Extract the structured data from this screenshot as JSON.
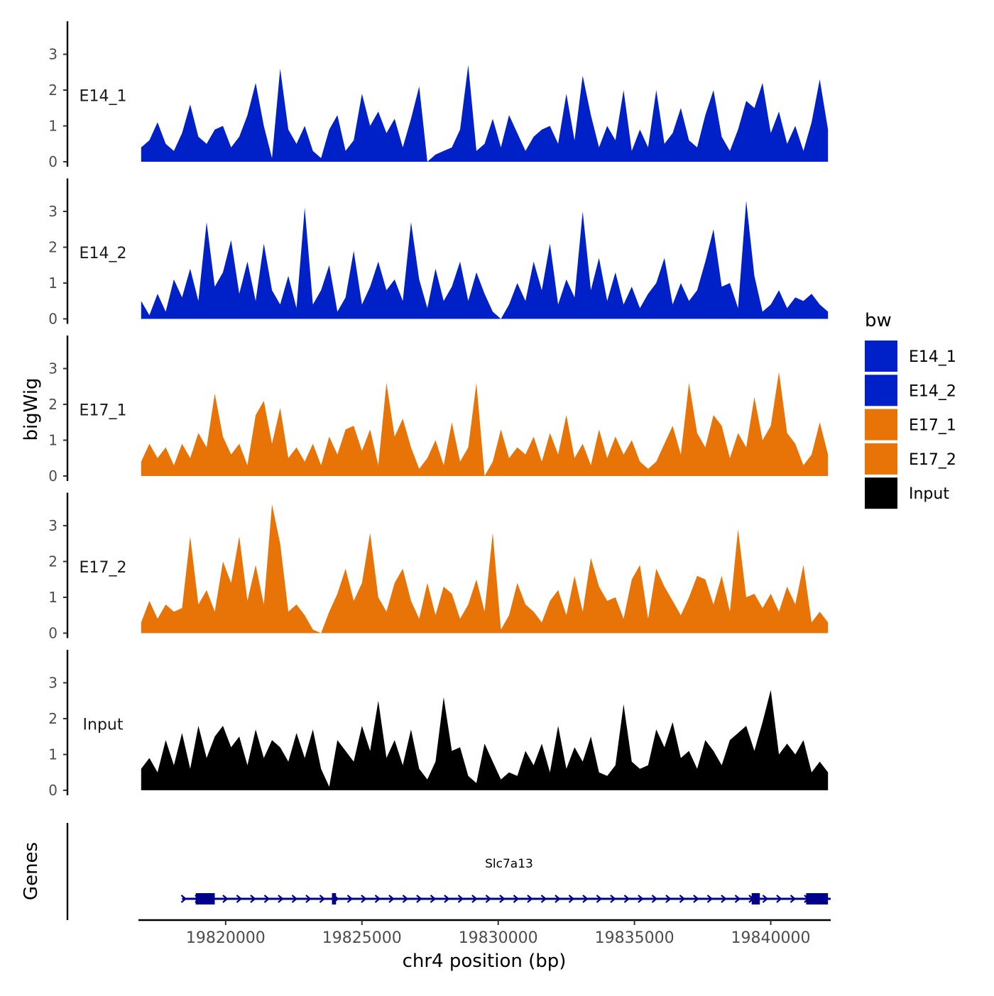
{
  "chart_data": {
    "type": "area",
    "ylabel": "bigWig",
    "xlabel": "chr4 position (bp)",
    "x_range": [
      19816800,
      19842200
    ],
    "x_ticks": [
      19820000,
      19825000,
      19830000,
      19835000,
      19840000
    ],
    "x_tick_labels": [
      "19820000",
      "19825000",
      "19830000",
      "19835000",
      "19840000"
    ],
    "y_range": [
      0,
      3.9
    ],
    "y_ticks": [
      0,
      1,
      2,
      3
    ],
    "y_tick_labels": [
      "0",
      "1",
      "2",
      "3"
    ],
    "tracks": [
      {
        "name": "E14_1",
        "color": "#0020C8",
        "x": [
          19816900,
          19817200,
          19817500,
          19817800,
          19818100,
          19818400,
          19818700,
          19819000,
          19819300,
          19819600,
          19819900,
          19820200,
          19820500,
          19820800,
          19821100,
          19821400,
          19821700,
          19822000,
          19822300,
          19822600,
          19822900,
          19823200,
          19823500,
          19823800,
          19824100,
          19824400,
          19824700,
          19825000,
          19825300,
          19825600,
          19825900,
          19826200,
          19826500,
          19826800,
          19827100,
          19827400,
          19827700,
          19828000,
          19828300,
          19828600,
          19828900,
          19829200,
          19829500,
          19829800,
          19830100,
          19830400,
          19830700,
          19831000,
          19831300,
          19831600,
          19831900,
          19832200,
          19832500,
          19832800,
          19833100,
          19833400,
          19833700,
          19834000,
          19834300,
          19834600,
          19834900,
          19835200,
          19835500,
          19835800,
          19836100,
          19836400,
          19836700,
          19837000,
          19837300,
          19837600,
          19837900,
          19838200,
          19838500,
          19838800,
          19839100,
          19839400,
          19839700,
          19840000,
          19840300,
          19840600,
          19840900,
          19841200,
          19841500,
          19841800,
          19842100
        ],
        "values": [
          0.4,
          0.6,
          1.1,
          0.5,
          0.3,
          0.8,
          1.6,
          0.7,
          0.5,
          0.9,
          1.0,
          0.4,
          0.7,
          1.3,
          2.2,
          1.0,
          0.1,
          2.6,
          0.9,
          0.5,
          1.0,
          0.3,
          0.1,
          0.9,
          1.3,
          0.3,
          0.6,
          1.9,
          1.0,
          1.4,
          0.8,
          1.2,
          0.4,
          1.2,
          2.1,
          0.0,
          0.2,
          0.3,
          0.4,
          0.9,
          2.7,
          0.3,
          0.5,
          1.2,
          0.4,
          1.3,
          0.8,
          0.3,
          0.7,
          0.9,
          1.0,
          0.5,
          1.9,
          0.6,
          2.4,
          1.3,
          0.4,
          1.0,
          0.6,
          2.0,
          0.3,
          0.9,
          0.4,
          2.0,
          0.5,
          0.8,
          1.5,
          0.6,
          0.4,
          1.3,
          2.0,
          0.7,
          0.3,
          0.9,
          1.7,
          1.5,
          2.2,
          0.8,
          1.4,
          0.5,
          1.0,
          0.3,
          1.1,
          2.3,
          0.9
        ]
      },
      {
        "name": "E14_2",
        "color": "#0020C8",
        "x": [
          19816900,
          19817200,
          19817500,
          19817800,
          19818100,
          19818400,
          19818700,
          19819000,
          19819300,
          19819600,
          19819900,
          19820200,
          19820500,
          19820800,
          19821100,
          19821400,
          19821700,
          19822000,
          19822300,
          19822600,
          19822900,
          19823200,
          19823500,
          19823800,
          19824100,
          19824400,
          19824700,
          19825000,
          19825300,
          19825600,
          19825900,
          19826200,
          19826500,
          19826800,
          19827100,
          19827400,
          19827700,
          19828000,
          19828300,
          19828600,
          19828900,
          19829200,
          19829500,
          19829800,
          19830100,
          19830400,
          19830700,
          19831000,
          19831300,
          19831600,
          19831900,
          19832200,
          19832500,
          19832800,
          19833100,
          19833400,
          19833700,
          19834000,
          19834300,
          19834600,
          19834900,
          19835200,
          19835500,
          19835800,
          19836100,
          19836400,
          19836700,
          19837000,
          19837300,
          19837600,
          19837900,
          19838200,
          19838500,
          19838800,
          19839100,
          19839400,
          19839700,
          19840000,
          19840300,
          19840600,
          19840900,
          19841200,
          19841500,
          19841800,
          19842100
        ],
        "values": [
          0.5,
          0.1,
          0.7,
          0.2,
          1.1,
          0.6,
          1.4,
          0.5,
          2.7,
          0.9,
          1.3,
          2.2,
          0.7,
          1.6,
          0.5,
          2.1,
          0.8,
          0.4,
          1.2,
          0.3,
          3.1,
          0.4,
          0.8,
          1.5,
          0.2,
          0.6,
          1.9,
          0.4,
          0.9,
          1.6,
          0.8,
          1.1,
          0.5,
          2.7,
          1.1,
          0.3,
          1.4,
          0.5,
          0.9,
          1.6,
          0.5,
          1.3,
          0.7,
          0.2,
          0.0,
          0.4,
          1.0,
          0.5,
          1.6,
          0.8,
          2.1,
          0.4,
          1.1,
          0.6,
          3.0,
          0.8,
          1.7,
          0.5,
          1.3,
          0.4,
          0.9,
          0.3,
          0.7,
          1.0,
          1.7,
          0.4,
          1.0,
          0.5,
          0.8,
          1.6,
          2.5,
          0.9,
          1.0,
          0.3,
          3.3,
          1.2,
          0.2,
          0.4,
          0.8,
          0.3,
          0.6,
          0.5,
          0.7,
          0.4,
          0.2
        ]
      },
      {
        "name": "E17_1",
        "color": "#E87306",
        "x": [
          19816900,
          19817200,
          19817500,
          19817800,
          19818100,
          19818400,
          19818700,
          19819000,
          19819300,
          19819600,
          19819900,
          19820200,
          19820500,
          19820800,
          19821100,
          19821400,
          19821700,
          19822000,
          19822300,
          19822600,
          19822900,
          19823200,
          19823500,
          19823800,
          19824100,
          19824400,
          19824700,
          19825000,
          19825300,
          19825600,
          19825900,
          19826200,
          19826500,
          19826800,
          19827100,
          19827400,
          19827700,
          19828000,
          19828300,
          19828600,
          19828900,
          19829200,
          19829500,
          19829800,
          19830100,
          19830400,
          19830700,
          19831000,
          19831300,
          19831600,
          19831900,
          19832200,
          19832500,
          19832800,
          19833100,
          19833400,
          19833700,
          19834000,
          19834300,
          19834600,
          19834900,
          19835200,
          19835500,
          19835800,
          19836100,
          19836400,
          19836700,
          19837000,
          19837300,
          19837600,
          19837900,
          19838200,
          19838500,
          19838800,
          19839100,
          19839400,
          19839700,
          19840000,
          19840300,
          19840600,
          19840900,
          19841200,
          19841500,
          19841800,
          19842100
        ],
        "values": [
          0.4,
          0.9,
          0.5,
          0.8,
          0.3,
          0.9,
          0.5,
          1.2,
          0.8,
          2.3,
          1.1,
          0.6,
          0.9,
          0.3,
          1.7,
          2.1,
          0.9,
          1.9,
          0.5,
          0.8,
          0.4,
          0.9,
          0.3,
          1.1,
          0.6,
          1.3,
          1.4,
          0.7,
          1.3,
          0.3,
          2.6,
          1.1,
          1.6,
          0.8,
          0.2,
          0.5,
          1.0,
          0.3,
          1.5,
          0.4,
          0.8,
          2.6,
          0.0,
          0.4,
          1.3,
          0.5,
          0.8,
          0.6,
          1.1,
          0.4,
          1.2,
          0.6,
          1.7,
          0.5,
          0.9,
          0.3,
          1.3,
          0.5,
          1.1,
          0.6,
          1.0,
          0.4,
          0.2,
          0.4,
          0.9,
          1.4,
          0.6,
          2.6,
          1.2,
          0.8,
          1.7,
          1.4,
          0.5,
          1.2,
          0.8,
          2.2,
          1.0,
          1.4,
          2.9,
          1.2,
          0.9,
          0.3,
          0.6,
          1.5,
          0.6
        ]
      },
      {
        "name": "E17_2",
        "color": "#E87306",
        "x": [
          19816900,
          19817200,
          19817500,
          19817800,
          19818100,
          19818400,
          19818700,
          19819000,
          19819300,
          19819600,
          19819900,
          19820200,
          19820500,
          19820800,
          19821100,
          19821400,
          19821700,
          19822000,
          19822300,
          19822600,
          19822900,
          19823200,
          19823500,
          19823800,
          19824100,
          19824400,
          19824700,
          19825000,
          19825300,
          19825600,
          19825900,
          19826200,
          19826500,
          19826800,
          19827100,
          19827400,
          19827700,
          19828000,
          19828300,
          19828600,
          19828900,
          19829200,
          19829500,
          19829800,
          19830100,
          19830400,
          19830700,
          19831000,
          19831300,
          19831600,
          19831900,
          19832200,
          19832500,
          19832800,
          19833100,
          19833400,
          19833700,
          19834000,
          19834300,
          19834600,
          19834900,
          19835200,
          19835500,
          19835800,
          19836100,
          19836400,
          19836700,
          19837000,
          19837300,
          19837600,
          19837900,
          19838200,
          19838500,
          19838800,
          19839100,
          19839400,
          19839700,
          19840000,
          19840300,
          19840600,
          19840900,
          19841200,
          19841500,
          19841800,
          19842100
        ],
        "values": [
          0.3,
          0.9,
          0.4,
          0.8,
          0.6,
          0.7,
          2.7,
          0.8,
          1.2,
          0.6,
          2.0,
          1.4,
          2.7,
          0.9,
          1.9,
          0.8,
          3.6,
          2.5,
          0.6,
          0.8,
          0.5,
          0.1,
          0.0,
          0.6,
          1.1,
          1.8,
          0.9,
          1.4,
          2.8,
          1.0,
          0.6,
          1.4,
          1.8,
          0.9,
          0.4,
          1.4,
          0.5,
          1.3,
          1.1,
          0.4,
          0.8,
          1.5,
          0.6,
          2.8,
          0.1,
          0.5,
          1.4,
          0.8,
          0.6,
          0.3,
          0.9,
          1.2,
          0.5,
          1.6,
          0.6,
          2.1,
          1.3,
          0.9,
          1.0,
          0.4,
          1.5,
          1.9,
          0.4,
          1.8,
          1.3,
          0.9,
          0.5,
          1.0,
          1.6,
          1.5,
          0.8,
          1.6,
          0.6,
          2.9,
          1.0,
          1.1,
          0.7,
          1.1,
          0.6,
          1.3,
          0.8,
          1.9,
          0.3,
          0.6,
          0.3
        ]
      },
      {
        "name": "Input",
        "color": "#000000",
        "x": [
          19816900,
          19817200,
          19817500,
          19817800,
          19818100,
          19818400,
          19818700,
          19819000,
          19819300,
          19819600,
          19819900,
          19820200,
          19820500,
          19820800,
          19821100,
          19821400,
          19821700,
          19822000,
          19822300,
          19822600,
          19822900,
          19823200,
          19823500,
          19823800,
          19824100,
          19824400,
          19824700,
          19825000,
          19825300,
          19825600,
          19825900,
          19826200,
          19826500,
          19826800,
          19827100,
          19827400,
          19827700,
          19828000,
          19828300,
          19828600,
          19828900,
          19829200,
          19829500,
          19829800,
          19830100,
          19830400,
          19830700,
          19831000,
          19831300,
          19831600,
          19831900,
          19832200,
          19832500,
          19832800,
          19833100,
          19833400,
          19833700,
          19834000,
          19834300,
          19834600,
          19834900,
          19835200,
          19835500,
          19835800,
          19836100,
          19836400,
          19836700,
          19837000,
          19837300,
          19837600,
          19837900,
          19838200,
          19838500,
          19838800,
          19839100,
          19839400,
          19839700,
          19840000,
          19840300,
          19840600,
          19840900,
          19841200,
          19841500,
          19841800,
          19842100
        ],
        "values": [
          0.6,
          0.9,
          0.5,
          1.4,
          0.7,
          1.6,
          0.6,
          1.8,
          0.9,
          1.5,
          1.8,
          1.2,
          1.5,
          0.7,
          1.7,
          0.9,
          1.4,
          1.2,
          0.8,
          1.6,
          0.9,
          1.7,
          0.6,
          0.1,
          1.4,
          1.1,
          0.8,
          1.8,
          1.1,
          2.5,
          0.9,
          1.4,
          0.7,
          1.7,
          0.6,
          0.3,
          0.8,
          2.6,
          1.1,
          1.2,
          0.4,
          0.2,
          1.3,
          0.8,
          0.3,
          0.5,
          0.4,
          1.1,
          0.7,
          1.3,
          0.5,
          1.8,
          0.6,
          1.2,
          0.8,
          1.5,
          0.5,
          0.4,
          0.7,
          2.4,
          0.8,
          0.6,
          0.7,
          1.7,
          1.2,
          1.9,
          0.9,
          1.1,
          0.6,
          1.4,
          1.1,
          0.7,
          1.4,
          1.6,
          1.8,
          1.1,
          1.9,
          2.8,
          1.0,
          1.3,
          1.0,
          1.4,
          0.5,
          0.8,
          0.5
        ]
      }
    ],
    "legend": {
      "title": "bw",
      "position": "right",
      "entries": [
        {
          "label": "E14_1",
          "color": "#0020C8"
        },
        {
          "label": "E14_2",
          "color": "#0020C8"
        },
        {
          "label": "E17_1",
          "color": "#E87306"
        },
        {
          "label": "E17_2",
          "color": "#E87306"
        },
        {
          "label": "Input",
          "color": "#000000"
        }
      ]
    },
    "genes_panel": {
      "label": "Genes",
      "gene_name": "Slc7a13",
      "strand": "+",
      "color": "#00008B",
      "start": 19818400,
      "end": 19842200,
      "exons": [
        [
          19818900,
          19819600
        ],
        [
          19823900,
          19824050
        ],
        [
          19839300,
          19839600
        ],
        [
          19841300,
          19842100
        ]
      ]
    }
  }
}
